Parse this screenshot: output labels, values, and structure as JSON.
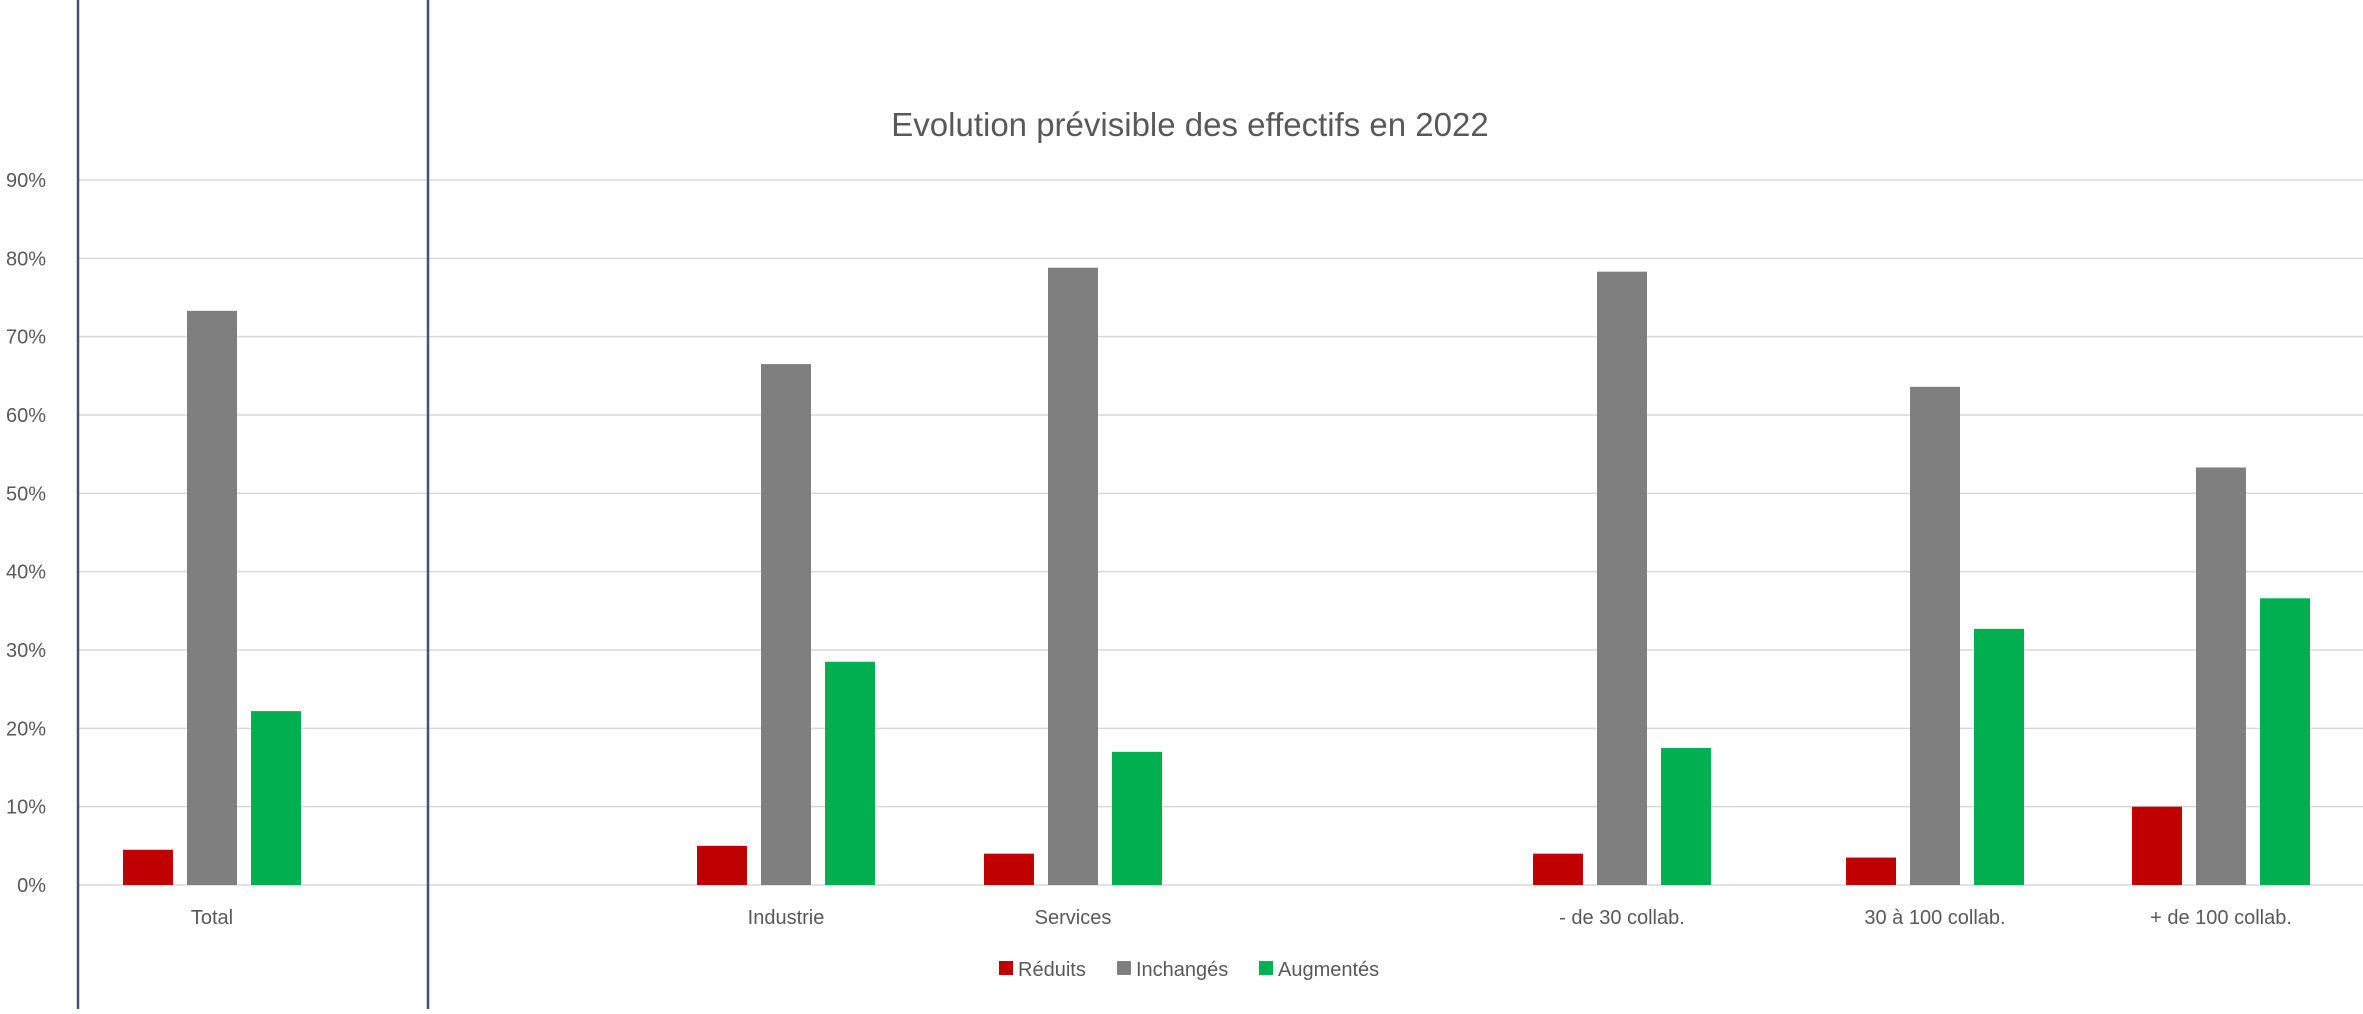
{
  "chart_data": {
    "type": "bar",
    "title": "Evolution prévisible des effectifs en 2022",
    "categories": [
      "Total",
      "Industrie",
      "Services",
      "- de 30 collab.",
      "30 à 100 collab.",
      "+ de 100 collab."
    ],
    "series": [
      {
        "name": "Réduits",
        "color": "#c00000",
        "values": [
          4.5,
          5.0,
          4.0,
          4.0,
          3.5,
          10.0
        ]
      },
      {
        "name": "Inchangés",
        "color": "#7f7f7f",
        "values": [
          73.3,
          66.5,
          78.8,
          78.3,
          63.6,
          53.3
        ]
      },
      {
        "name": "Augmentés",
        "color": "#00b050",
        "values": [
          22.2,
          28.5,
          17.0,
          17.5,
          32.7,
          36.6
        ]
      }
    ],
    "ylim": [
      0,
      90
    ],
    "yticks": [
      "0%",
      "10%",
      "20%",
      "30%",
      "40%",
      "50%",
      "60%",
      "70%",
      "80%",
      "90%"
    ],
    "xlabel": "",
    "ylabel": "",
    "grid": true,
    "legend_position": "bottom",
    "highlight_box_category": "Total",
    "colors": {
      "gridline": "#d9d9d9",
      "text": "#595959",
      "highlight_box": "#44546a"
    }
  }
}
